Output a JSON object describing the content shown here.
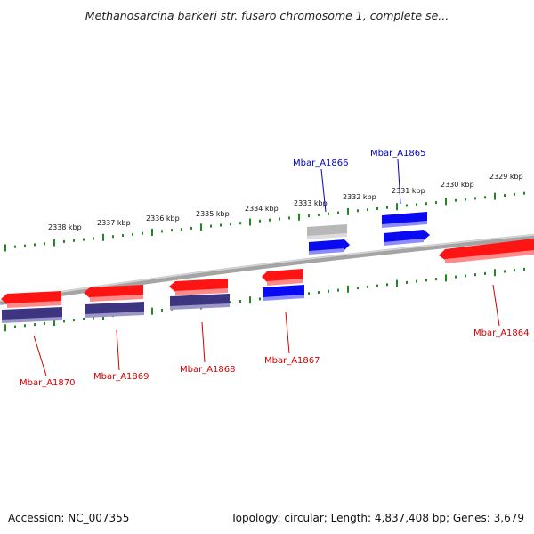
{
  "header": {
    "title": "Methanosarcina barkeri str. fusaro chromosome 1, complete se..."
  },
  "footer": {
    "accession": "Accession: NC_007355",
    "topology": "Topology: circular; Length: 4,837,408 bp; Genes: 3,679"
  },
  "colors": {
    "backbone": "#8a8a8a",
    "tick": "#1f8a1f",
    "red_gene": "#ff1a1a",
    "blue_gene": "#1010ff",
    "navy_gene": "#3d3580",
    "gray_gene": "#b5b5b5",
    "label_red": "#d40000",
    "label_blue": "#0000c0"
  },
  "ruler": {
    "labels": [
      "2338 kbp",
      "2337 kbp",
      "2336 kbp",
      "2335 kbp",
      "2334 kbp",
      "2333 kbp",
      "2332 kbp",
      "2331 kbp",
      "2330 kbp",
      "2329 kbp"
    ]
  },
  "genes": {
    "top_labels": [
      "Mbar_A1866",
      "Mbar_A1865"
    ],
    "bottom_labels": [
      "Mbar_A1870",
      "Mbar_A1869",
      "Mbar_A1868",
      "Mbar_A1867",
      "Mbar_A1864"
    ]
  }
}
